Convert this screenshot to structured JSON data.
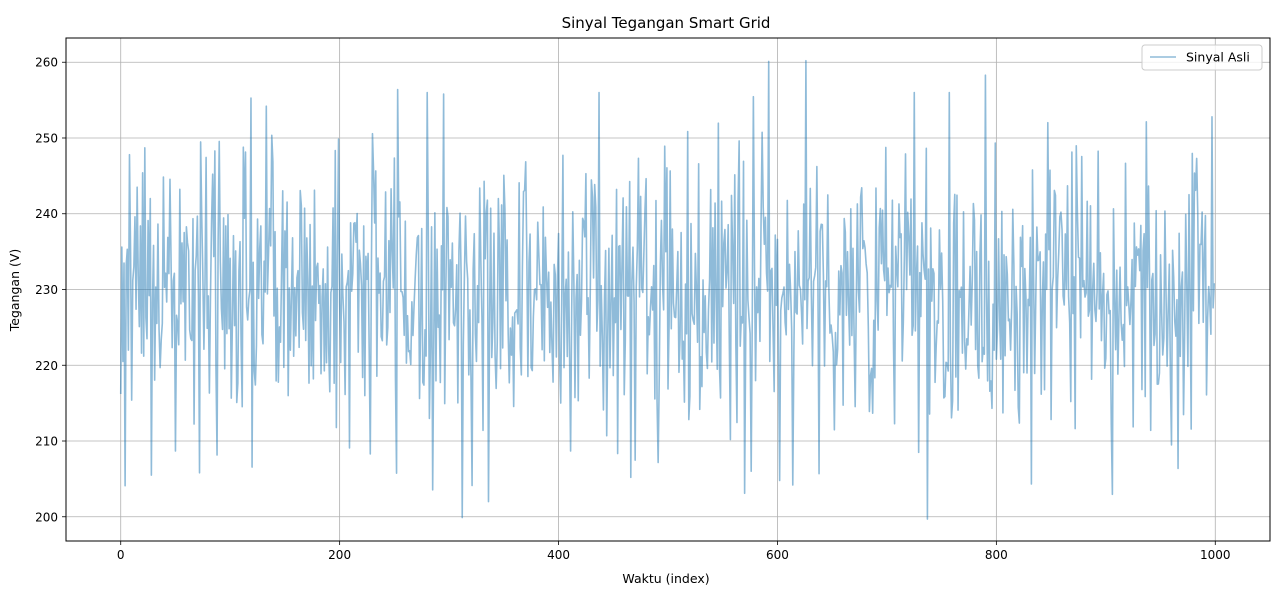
{
  "chart_data": {
    "type": "line",
    "title": "Sinyal Tegangan Smart Grid",
    "xlabel": "Waktu (index)",
    "ylabel": "Tegangan (V)",
    "xlim": [
      -50,
      1050
    ],
    "ylim": [
      196.8,
      263.2
    ],
    "xticks": [
      0,
      200,
      400,
      600,
      800,
      1000
    ],
    "yticks": [
      200,
      210,
      220,
      230,
      240,
      250,
      260
    ],
    "xtick_labels": [
      "0",
      "200",
      "400",
      "600",
      "800",
      "1000"
    ],
    "ytick_labels": [
      "200",
      "210",
      "220",
      "230",
      "240",
      "250",
      "260"
    ],
    "grid": true,
    "legend": {
      "position": "top-right",
      "entries": [
        "Sinyal Asli"
      ]
    },
    "series": [
      {
        "name": "Sinyal Asli",
        "color": "#1f77b4",
        "opacity": 0.5,
        "n_points": 1000,
        "mean": 230,
        "std": 10,
        "summary": "Noisy voltage signal around 230 V, ranging roughly from 200 V to 260 V",
        "sample_values": [
          216.2,
          235.6,
          220.5,
          233.5,
          204.1,
          233.2,
          235.3,
          222.0,
          247.8,
          235.0,
          215.4,
          231.2,
          233.0,
          239.6,
          227.4,
          243.5,
          231.8,
          225.1,
          238.4,
          221.6,
          245.4,
          221.2,
          248.7,
          226.3,
          223.5,
          239.1,
          229.2,
          242.0,
          205.5,
          228.3
        ],
        "notable_points": [
          {
            "x": 4,
            "y": 204.1
          },
          {
            "x": 133,
            "y": 254.2
          },
          {
            "x": 253,
            "y": 256.4
          },
          {
            "x": 312,
            "y": 199.9
          },
          {
            "x": 570,
            "y": 203.1
          },
          {
            "x": 592,
            "y": 260.1
          },
          {
            "x": 626,
            "y": 260.2
          },
          {
            "x": 737,
            "y": 199.7
          },
          {
            "x": 790,
            "y": 258.3
          },
          {
            "x": 997,
            "y": 252.8
          }
        ]
      }
    ]
  }
}
